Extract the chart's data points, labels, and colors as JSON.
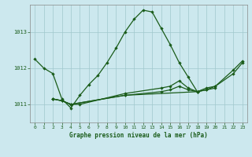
{
  "title": "Graphe pression niveau de la mer (hPa)",
  "bg_color": "#cce8ee",
  "line_color": "#1a5c1a",
  "grid_color": "#a0c8cc",
  "axis_color": "#1a5c1a",
  "xlim": [
    -0.5,
    23.5
  ],
  "ylim": [
    1010.5,
    1013.75
  ],
  "xticks": [
    0,
    1,
    2,
    3,
    4,
    5,
    6,
    7,
    8,
    9,
    10,
    11,
    12,
    13,
    14,
    15,
    16,
    17,
    18,
    19,
    20,
    21,
    22,
    23
  ],
  "yticks": [
    1011,
    1012,
    1013
  ],
  "line1_x": [
    0,
    1,
    2,
    3,
    4,
    5,
    6,
    7,
    8,
    9,
    10,
    11,
    12,
    13,
    14,
    15,
    16,
    17,
    18
  ],
  "line1_y": [
    1012.25,
    1012.0,
    1011.85,
    1011.15,
    1010.9,
    1011.25,
    1011.55,
    1011.8,
    1012.15,
    1012.55,
    1013.0,
    1013.35,
    1013.6,
    1013.55,
    1013.1,
    1012.65,
    1012.15,
    1011.75,
    1011.35
  ],
  "line2_x": [
    2,
    3,
    4,
    5,
    10,
    14,
    15,
    16,
    17,
    18,
    19,
    20,
    22,
    23
  ],
  "line2_y": [
    1011.15,
    1011.1,
    1011.0,
    1011.0,
    1011.3,
    1011.45,
    1011.5,
    1011.65,
    1011.45,
    1011.35,
    1011.45,
    1011.5,
    1011.95,
    1012.2
  ],
  "line3_x": [
    2,
    3,
    4,
    10,
    14,
    15,
    16,
    17,
    18,
    19,
    20
  ],
  "line3_y": [
    1011.15,
    1011.1,
    1011.0,
    1011.25,
    1011.35,
    1011.4,
    1011.5,
    1011.4,
    1011.35,
    1011.4,
    1011.45
  ],
  "line4_x": [
    2,
    3,
    4,
    10,
    18,
    19,
    20,
    22,
    23
  ],
  "line4_y": [
    1011.15,
    1011.1,
    1011.0,
    1011.25,
    1011.35,
    1011.4,
    1011.5,
    1011.85,
    1012.15
  ]
}
